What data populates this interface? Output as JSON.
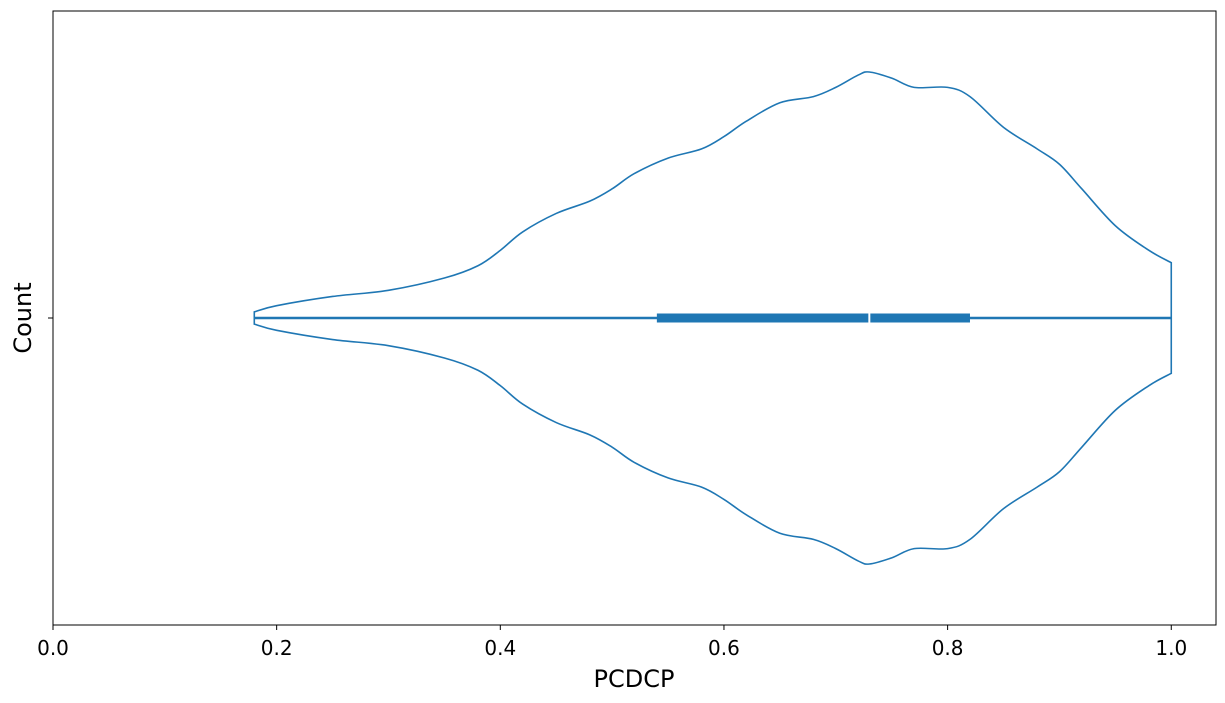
{
  "chart_data": {
    "type": "violin",
    "orientation": "horizontal",
    "xlabel": "PCDCP",
    "ylabel": "Count",
    "xlim": [
      0.0,
      1.04
    ],
    "x_ticks": [
      0.0,
      0.2,
      0.4,
      0.6,
      0.8,
      1.0
    ],
    "x_tick_labels": [
      "0.0",
      "0.2",
      "0.4",
      "0.6",
      "0.8",
      "1.0"
    ],
    "grid": false,
    "color": "#1f77b4",
    "summary": {
      "min": 0.18,
      "q1": 0.54,
      "median": 0.73,
      "q3": 0.82,
      "max": 1.0
    },
    "density_profile": {
      "x": [
        0.18,
        0.2,
        0.25,
        0.3,
        0.35,
        0.38,
        0.4,
        0.42,
        0.45,
        0.48,
        0.5,
        0.52,
        0.55,
        0.58,
        0.6,
        0.62,
        0.65,
        0.68,
        0.7,
        0.72,
        0.73,
        0.75,
        0.77,
        0.8,
        0.82,
        0.85,
        0.88,
        0.9,
        0.92,
        0.95,
        0.98,
        1.0
      ],
      "density": [
        0.02,
        0.04,
        0.07,
        0.09,
        0.13,
        0.17,
        0.22,
        0.28,
        0.34,
        0.38,
        0.42,
        0.47,
        0.52,
        0.55,
        0.59,
        0.64,
        0.7,
        0.72,
        0.75,
        0.79,
        0.8,
        0.78,
        0.75,
        0.75,
        0.72,
        0.62,
        0.55,
        0.5,
        0.42,
        0.3,
        0.22,
        0.18
      ]
    }
  }
}
